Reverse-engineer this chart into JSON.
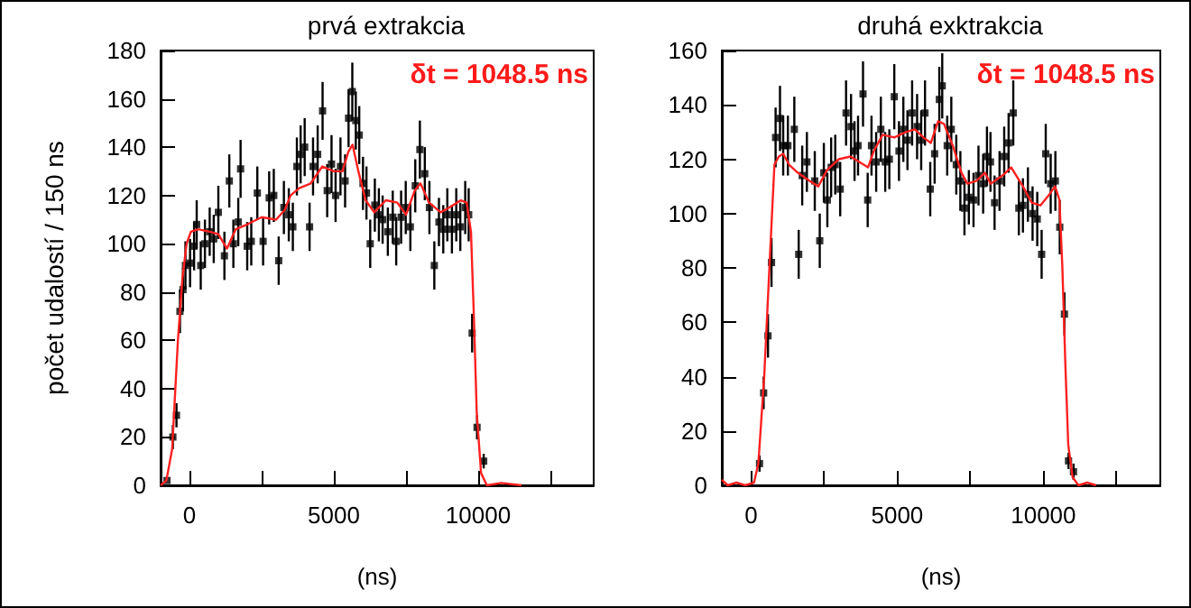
{
  "chart_data": [
    {
      "type": "scatter",
      "title": "prvá extrakcia",
      "xlabel": "(ns)",
      "ylabel": "počet udalostí / 150 ns",
      "annotations": [
        "δt = 1048.5 ns"
      ],
      "xlim": [
        -1000,
        14000
      ],
      "xticks": [
        0,
        {
          "value": 2500,
          "label": null
        },
        5000,
        {
          "value": 7500,
          "label": null
        },
        10000,
        {
          "value": 12500,
          "label": null
        }
      ],
      "ylim": [
        0,
        180
      ],
      "yticks": [
        0,
        20,
        40,
        60,
        80,
        100,
        120,
        140,
        160,
        180
      ],
      "series": [
        {
          "marker": "square",
          "color": "#000000",
          "x": [
            -780,
            -575,
            -450,
            -330,
            -225,
            -140,
            20,
            160,
            250,
            390,
            535,
            700,
            840,
            1000,
            1210,
            1380,
            1520,
            1690,
            1770,
            2000,
            2140,
            2350,
            2550,
            2760,
            2920,
            3090,
            3270,
            3440,
            3580,
            3720,
            3850,
            3990,
            4160,
            4280,
            4440,
            4610,
            4770,
            4920,
            5060,
            5230,
            5390,
            5510,
            5640,
            5760,
            5880,
            6010,
            6130,
            6260,
            6420,
            6560,
            6690,
            6870,
            7040,
            7160,
            7330,
            7490,
            7650,
            7820,
            7980,
            8150,
            8310,
            8480,
            8640,
            8790,
            8930,
            9090,
            9240,
            9380,
            9550,
            9670,
            9790,
            9960,
            10190
          ],
          "values": [
            2,
            20,
            29,
            72,
            81,
            91,
            92,
            99,
            108,
            91,
            100,
            105,
            102,
            113,
            95,
            126,
            100,
            109,
            131,
            99,
            101,
            121,
            101,
            119,
            120,
            93,
            115,
            112,
            107,
            132,
            137,
            140,
            107,
            132,
            137,
            155,
            122,
            133,
            120,
            132,
            126,
            152,
            163,
            151,
            145,
            125,
            121,
            100,
            116,
            112,
            110,
            105,
            111,
            101,
            111,
            115,
            107,
            124,
            139,
            129,
            115,
            91,
            109,
            106,
            112,
            106,
            112,
            107,
            115,
            112,
            63,
            24,
            10
          ],
          "errors": [
            null,
            5,
            5,
            9,
            9,
            10,
            10,
            10,
            10,
            10,
            10,
            10,
            10,
            11,
            10,
            11,
            10,
            10,
            12,
            10,
            10,
            11,
            10,
            11,
            11,
            10,
            11,
            11,
            10,
            12,
            12,
            12,
            10,
            12,
            12,
            12,
            11,
            12,
            11,
            12,
            11,
            12,
            12,
            12,
            12,
            11,
            11,
            10,
            11,
            11,
            10,
            10,
            11,
            10,
            11,
            11,
            10,
            11,
            12,
            11,
            11,
            10,
            10,
            10,
            11,
            10,
            11,
            10,
            11,
            11,
            8,
            5,
            3
          ]
        },
        {
          "type": "line",
          "color": "#ff2020",
          "x": [
            -1000,
            -800,
            -600,
            -400,
            -250,
            -100,
            50,
            300,
            700,
            1000,
            1300,
            1600,
            2000,
            2500,
            3000,
            3300,
            3500,
            3800,
            4200,
            4600,
            5000,
            5300,
            5500,
            5650,
            5850,
            6100,
            6400,
            6800,
            7200,
            7500,
            7800,
            8000,
            8300,
            8700,
            9000,
            9400,
            9600,
            9750,
            9850,
            9950,
            10100,
            10300,
            10800,
            11500
          ],
          "values": [
            0,
            2,
            15,
            60,
            85,
            100,
            105,
            106,
            105,
            104,
            98,
            106,
            108,
            111,
            110,
            114,
            120,
            123,
            125,
            132,
            130,
            130,
            138,
            141,
            130,
            118,
            113,
            118,
            117,
            112,
            122,
            125,
            117,
            113,
            115,
            118,
            117,
            105,
            70,
            30,
            5,
            0,
            1,
            0
          ]
        }
      ]
    },
    {
      "type": "scatter",
      "title": "druhá exktrakcia",
      "xlabel": "(ns)",
      "annotations": [
        "δt = 1048.5 ns"
      ],
      "xlim": [
        -1000,
        14000
      ],
      "xticks": [
        0,
        {
          "value": 2500,
          "label": null
        },
        5000,
        {
          "value": 7500,
          "label": null
        },
        10000,
        {
          "value": 12500,
          "label": null
        }
      ],
      "ylim": [
        0,
        160
      ],
      "yticks": [
        0,
        20,
        40,
        60,
        80,
        100,
        120,
        140,
        160
      ],
      "series": [
        {
          "marker": "square",
          "color": "#000000",
          "x": [
            290,
            430,
            580,
            700,
            840,
            990,
            1100,
            1260,
            1480,
            1630,
            1750,
            1910,
            2180,
            2350,
            2490,
            2610,
            2740,
            2880,
            3050,
            3250,
            3420,
            3540,
            3660,
            3830,
            3990,
            4120,
            4280,
            4440,
            4590,
            4730,
            4900,
            5060,
            5210,
            5350,
            5510,
            5680,
            5820,
            5950,
            6130,
            6280,
            6440,
            6540,
            6710,
            6850,
            7020,
            7160,
            7300,
            7450,
            7610,
            7780,
            7940,
            8070,
            8190,
            8330,
            8500,
            8660,
            8810,
            8970,
            9160,
            9300,
            9470,
            9630,
            9790,
            9940,
            10080,
            10250,
            10410,
            10560,
            10720,
            10860,
            11030
          ],
          "values": [
            8,
            34,
            55,
            82,
            128,
            135,
            125,
            125,
            131,
            85,
            114,
            119,
            112,
            90,
            115,
            105,
            117,
            118,
            109,
            137,
            132,
            123,
            125,
            144,
            105,
            125,
            119,
            131,
            119,
            120,
            143,
            123,
            131,
            127,
            137,
            132,
            127,
            137,
            109,
            122,
            142,
            147,
            125,
            131,
            118,
            112,
            102,
            106,
            105,
            114,
            111,
            121,
            119,
            104,
            112,
            121,
            126,
            137,
            102,
            103,
            107,
            100,
            98,
            85,
            122,
            111,
            112,
            95,
            63,
            9,
            5
          ],
          "errors": [
            3,
            6,
            8,
            9,
            11,
            12,
            11,
            11,
            12,
            9,
            11,
            11,
            11,
            10,
            11,
            10,
            11,
            11,
            10,
            12,
            12,
            11,
            11,
            12,
            10,
            11,
            11,
            12,
            11,
            11,
            12,
            11,
            12,
            11,
            12,
            12,
            11,
            12,
            10,
            11,
            12,
            12,
            11,
            12,
            11,
            11,
            10,
            10,
            10,
            11,
            11,
            11,
            11,
            10,
            11,
            11,
            11,
            12,
            10,
            10,
            10,
            10,
            10,
            9,
            11,
            11,
            11,
            10,
            8,
            3,
            3
          ]
        },
        {
          "type": "line",
          "color": "#ff2020",
          "x": [
            -1000,
            -800,
            -500,
            -200,
            100,
            250,
            450,
            650,
            800,
            950,
            1100,
            1300,
            1600,
            2000,
            2300,
            2600,
            3000,
            3400,
            3700,
            4000,
            4200,
            4500,
            4900,
            5300,
            5600,
            5900,
            6150,
            6400,
            6600,
            6900,
            7200,
            7400,
            7700,
            8000,
            8200,
            8600,
            8900,
            9300,
            9600,
            9900,
            10200,
            10400,
            10550,
            10650,
            10750,
            10850,
            11000,
            11200,
            11500,
            11800
          ],
          "values": [
            2,
            0,
            1,
            0,
            1,
            8,
            40,
            85,
            118,
            121,
            122,
            118,
            115,
            112,
            110,
            116,
            120,
            121,
            119,
            117,
            123,
            129,
            128,
            130,
            131,
            128,
            126,
            134,
            133,
            125,
            115,
            111,
            112,
            115,
            111,
            114,
            117,
            110,
            104,
            103,
            107,
            110,
            105,
            80,
            45,
            15,
            3,
            0,
            1,
            0
          ]
        }
      ]
    }
  ]
}
